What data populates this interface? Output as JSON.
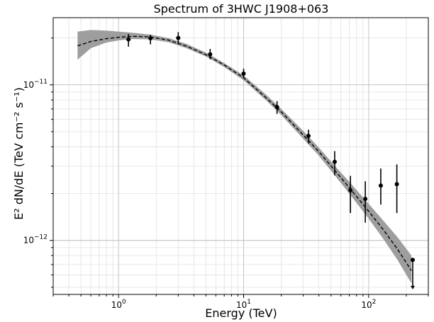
{
  "chart_data": {
    "type": "line",
    "title": "Spectrum of 3HWC J1908+063",
    "xlabel": "Energy (TeV)",
    "ylabel": "E² dN/dE (TeV cm⁻² s⁻¹)",
    "x_scale": "log",
    "y_scale": "log",
    "xlim": [
      0.3,
      300
    ],
    "ylim": [
      4.5e-13,
      2.7e-11
    ],
    "grid": true,
    "x_ticks": [
      {
        "value": 1,
        "base": "10",
        "exp": "0"
      },
      {
        "value": 10,
        "base": "10",
        "exp": "1"
      },
      {
        "value": 100,
        "base": "10",
        "exp": "2"
      }
    ],
    "y_ticks": [
      {
        "value": 1e-12,
        "base": "10",
        "exp": "−12"
      },
      {
        "value": 1e-11,
        "base": "10",
        "exp": "−11"
      }
    ],
    "series": [
      {
        "kind": "model_band",
        "color": "#999999",
        "x": [
          0.47,
          0.6,
          0.8,
          1.0,
          1.3,
          1.8,
          2.5,
          3.5,
          5,
          7,
          10,
          15,
          20,
          30,
          40,
          55,
          70,
          100,
          130,
          170,
          220
        ],
        "y_low": [
          1.45e-11,
          1.72e-11,
          1.87e-11,
          1.93e-11,
          1.97e-11,
          1.96e-11,
          1.88e-11,
          1.72e-11,
          1.52e-11,
          1.3e-11,
          1.07e-11,
          8e-12,
          6.4e-12,
          4.5e-12,
          3.5e-12,
          2.55e-12,
          2e-12,
          1.38e-12,
          1.03e-12,
          7.5e-13,
          5.3e-13
        ],
        "y_high": [
          2.2e-11,
          2.25e-11,
          2.23e-11,
          2.2e-11,
          2.16e-11,
          2.1e-11,
          2e-11,
          1.83e-11,
          1.61e-11,
          1.38e-11,
          1.15e-11,
          8.7e-12,
          7e-12,
          5.05e-12,
          3.95e-12,
          2.95e-12,
          2.38e-12,
          1.72e-12,
          1.35e-12,
          1.05e-12,
          8e-13
        ]
      },
      {
        "kind": "model_line",
        "color": "#000000",
        "x": [
          0.47,
          0.6,
          0.8,
          1.0,
          1.3,
          1.8,
          2.5,
          3.5,
          5,
          7,
          10,
          15,
          20,
          30,
          40,
          55,
          70,
          100,
          130,
          170,
          220
        ],
        "y": [
          1.78e-11,
          1.9e-11,
          1.98e-11,
          2.02e-11,
          2.05e-11,
          2.03e-11,
          1.94e-11,
          1.77e-11,
          1.56e-11,
          1.34e-11,
          1.11e-11,
          8.3e-12,
          6.7e-12,
          4.75e-12,
          3.72e-12,
          2.75e-12,
          2.18e-12,
          1.54e-12,
          1.18e-12,
          8.8e-13,
          6.4e-13
        ]
      },
      {
        "kind": "data_points",
        "color": "#000000",
        "x": [
          1.2,
          1.8,
          3.0,
          5.4,
          10.0,
          18.5,
          33.0,
          53.5,
          71.5,
          94.0,
          125.0,
          168.0
        ],
        "y": [
          1.96e-11,
          1.99e-11,
          2e-11,
          1.57e-11,
          1.18e-11,
          7.2e-12,
          4.7e-12,
          3.2e-12,
          2.1e-12,
          1.85e-12,
          2.25e-12,
          2.3e-12
        ],
        "y_err_low": [
          1.76e-11,
          1.82e-11,
          1.82e-11,
          1.46e-11,
          1.11e-11,
          6.5e-12,
          4.2e-12,
          2.62e-12,
          1.5e-12,
          1.3e-12,
          1.7e-12,
          1.5e-12
        ],
        "y_err_high": [
          2.12e-11,
          2.1e-11,
          2.18e-11,
          1.7e-11,
          1.27e-11,
          7.85e-12,
          5.15e-12,
          3.75e-12,
          2.6e-12,
          2.4e-12,
          2.9e-12,
          3.08e-12
        ]
      },
      {
        "kind": "upper_limit",
        "color": "#000000",
        "x": [
          225
        ],
        "y": [
          7.5e-13
        ],
        "y_arrow_to": [
          4.9e-13
        ]
      }
    ]
  }
}
